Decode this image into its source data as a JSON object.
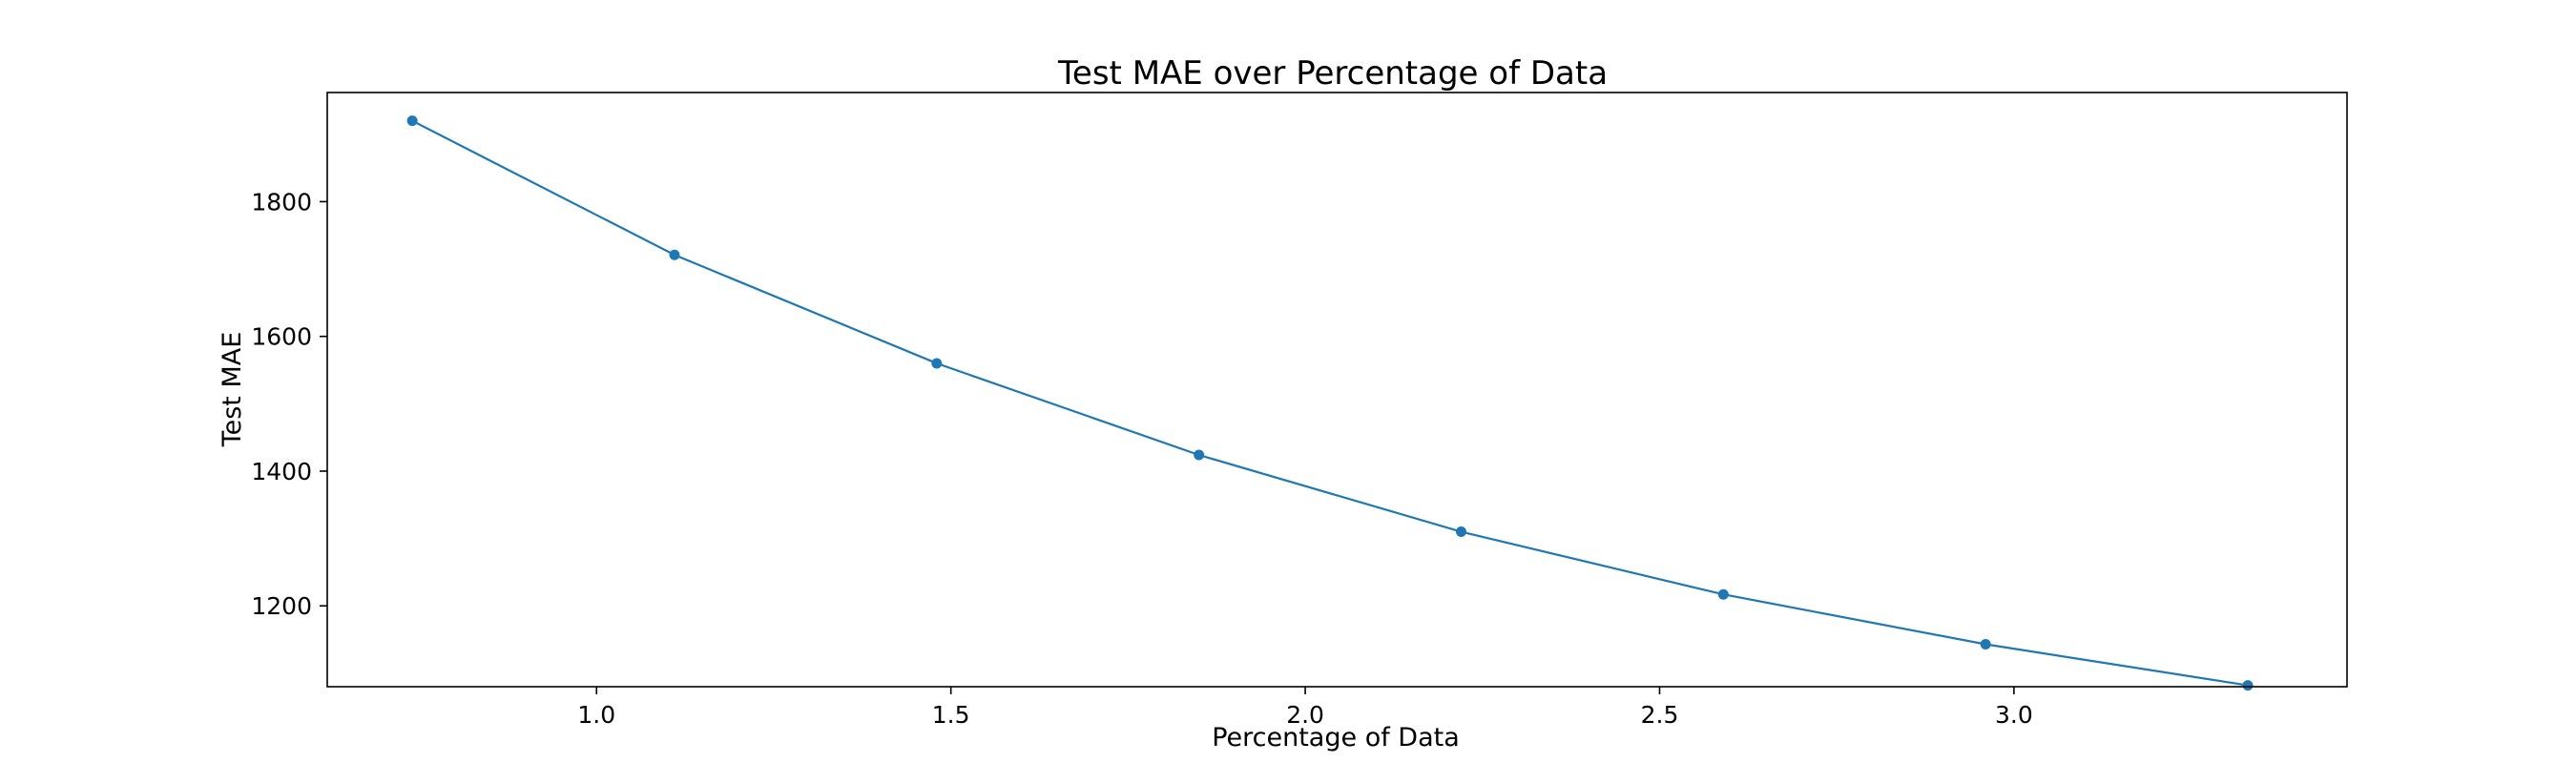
{
  "chart_data": {
    "type": "line",
    "title": "Test MAE over Percentage of Data",
    "xlabel": "Percentage of Data",
    "ylabel": "Test MAE",
    "xlim": [
      0.62,
      3.47
    ],
    "ylim": [
      1080,
      1962
    ],
    "xticks": [
      1.0,
      1.5,
      2.0,
      2.5,
      3.0
    ],
    "xtick_labels": [
      "1.0",
      "1.5",
      "2.0",
      "2.5",
      "3.0"
    ],
    "yticks": [
      1200,
      1400,
      1600,
      1800
    ],
    "ytick_labels": [
      "1200",
      "1400",
      "1600",
      "1800"
    ],
    "grid": false,
    "series": [
      {
        "color": "#1f77b4",
        "marker": "circle",
        "x": [
          0.74,
          1.11,
          1.48,
          1.85,
          2.22,
          2.59,
          2.96,
          3.33
        ],
        "y": [
          1920,
          1721,
          1560,
          1424,
          1310,
          1217,
          1143,
          1082
        ]
      }
    ]
  }
}
